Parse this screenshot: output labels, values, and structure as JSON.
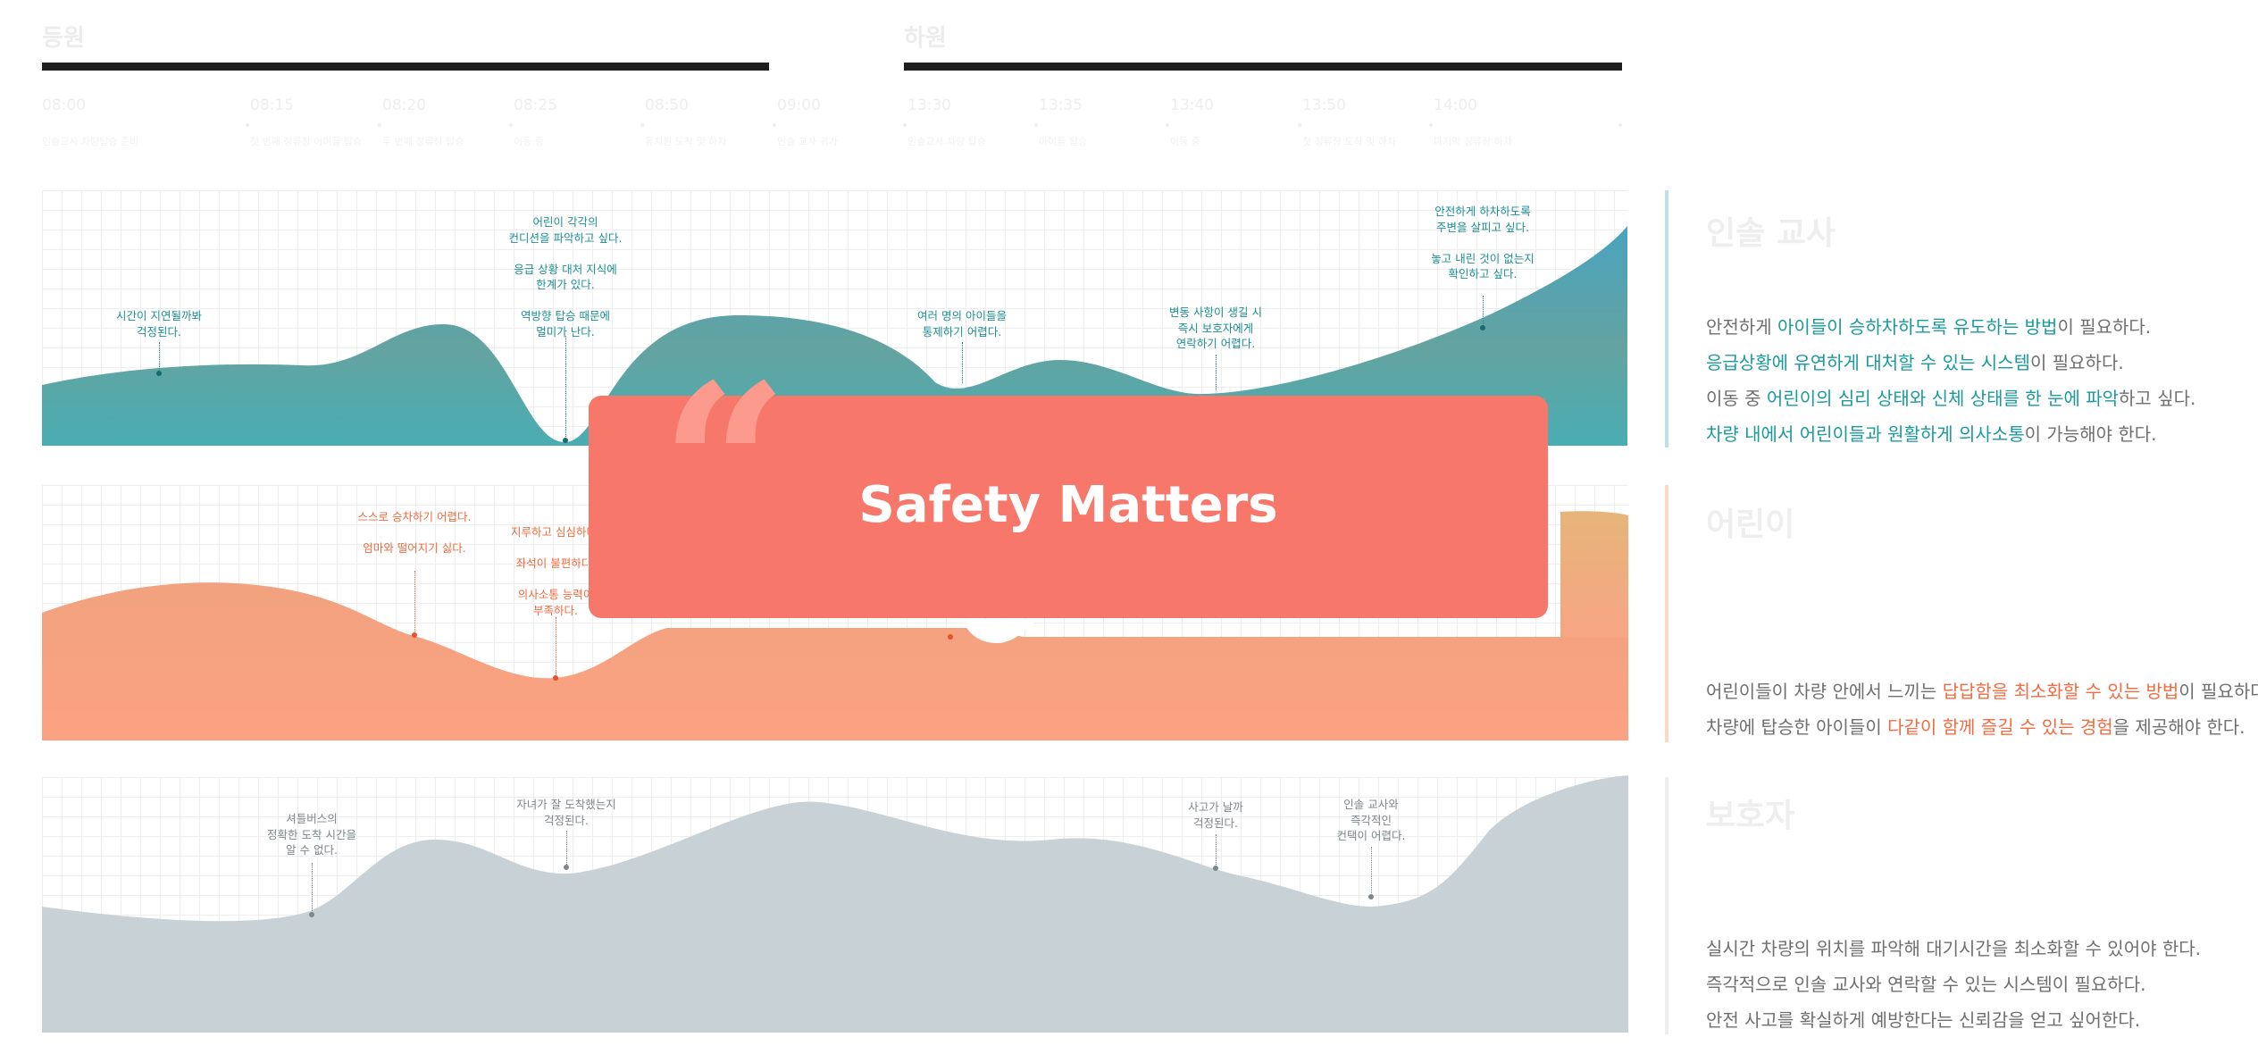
{
  "timeline": {
    "morning": {
      "title": "등원",
      "events": [
        {
          "time": "08:00",
          "desc": "인솔교사 차량탑승 준비"
        },
        {
          "time": "08:15",
          "desc": "첫 번째 정류장 아이들 탑승"
        },
        {
          "time": "08:20",
          "desc": "두 번째 정류장 탑승"
        },
        {
          "time": "08:25",
          "desc": "이동 중"
        },
        {
          "time": "08:50",
          "desc": "유치원 도착 및 하차"
        },
        {
          "time": "09:00",
          "desc": "인솔 교사 귀가"
        }
      ]
    },
    "afternoon": {
      "title": "하원",
      "events": [
        {
          "time": "13:30",
          "desc": "인솔교사 차량 탑승"
        },
        {
          "time": "13:35",
          "desc": "아이들 탑승"
        },
        {
          "time": "13:40",
          "desc": "이동 중"
        },
        {
          "time": "13:50",
          "desc": "첫 정류장 도착 및 하차"
        },
        {
          "time": "14:00",
          "desc": "마지막 정류장 하차"
        }
      ]
    }
  },
  "overlay": {
    "quote_glyph": "“",
    "title": "Safety Matters"
  },
  "personas": {
    "teacher": {
      "title": "인솔 교사",
      "needs": [
        {
          "parts": [
            {
              "t": "안전하게 ",
              "hl": false
            },
            {
              "t": "아이들이 승하차하도록 유도하는 방법",
              "hl": true
            },
            {
              "t": "이 필요하다.",
              "hl": false
            }
          ]
        },
        {
          "parts": [
            {
              "t": "응급상황에 유연하게 대처할 수 있는 시스템",
              "hl": true
            },
            {
              "t": "이 필요하다.",
              "hl": false
            }
          ]
        },
        {
          "parts": [
            {
              "t": "이동 중 ",
              "hl": false
            },
            {
              "t": "어린이의 심리 상태와 신체 상태를 한 눈에 파악",
              "hl": true
            },
            {
              "t": "하고 싶다.",
              "hl": false
            }
          ]
        },
        {
          "parts": [
            {
              "t": "차량 내에서 어린이들과 원활하게 의사소통",
              "hl": true
            },
            {
              "t": "이 가능해야 한다.",
              "hl": false
            }
          ]
        }
      ],
      "annotations": [
        "시간이 지연될까봐\n걱정된다.",
        "어린이 각각의\n컨디션을 파악하고 싶다.\n\n응급 상황 대처 지식에\n한계가 있다.\n\n역방향 탑승 때문에\n멀미가 난다.",
        "여러 명의 아이들을\n통제하기 어렵다.",
        "변동 사항이 생길 시\n즉시 보호자에게\n연락하기 어렵다.",
        "안전하게 하차하도록\n주변을 살피고 싶다.\n\n놓고 내린 것이 없는지\n확인하고 싶다."
      ]
    },
    "child": {
      "title": "어린이",
      "needs": [
        {
          "parts": [
            {
              "t": "어린이들이 차량 안에서 느끼는 ",
              "hl": false
            },
            {
              "t": "답답함을 최소화할 수 있는 방법",
              "hl": true
            },
            {
              "t": "이 필요하다.",
              "hl": false
            }
          ]
        },
        {
          "parts": [
            {
              "t": "차량에 탑승한 아이들이 ",
              "hl": false
            },
            {
              "t": "다같이 함께 즐길 수 있는 경험",
              "hl": true
            },
            {
              "t": "을 제공해야 한다.",
              "hl": false
            }
          ]
        }
      ],
      "annotations": [
        "스스로 승차하기 어렵다.\n\n엄마와 떨어지기 싫다.",
        "지루하고 심심하다.\n\n좌석이 불편하다.\n\n의사소통 능력이\n부족하다."
      ]
    },
    "guardian": {
      "title": "보호자",
      "needs": [
        {
          "parts": [
            {
              "t": "실시간 차량의 위치를 파악해 대기시간을 최소화할 수 있어야 한다.",
              "hl": false
            }
          ]
        },
        {
          "parts": [
            {
              "t": "즉각적으로 인솔 교사와 연락할 수 있는 시스템이 필요하다.",
              "hl": false
            }
          ]
        },
        {
          "parts": [
            {
              "t": "안전 사고를 확실하게 예방한다는 신뢰감을 얻고 싶어한다.",
              "hl": false
            }
          ]
        }
      ],
      "annotations": [
        "셔틀버스의\n정확한 도착 시간을\n알 수 없다.",
        "자녀가 잘 도착했는지\n걱정된다.",
        "사고가 날까\n걱정된다.",
        "인솔 교사와\n즉각적인\n컨택이 어렵다."
      ]
    }
  },
  "colors": {
    "teal_top": "#4aa3bf",
    "teal_mid": "#64a3a0",
    "teal_bottom": "#49adb2",
    "orange_top": "#e6b57a",
    "orange_bottom": "#fba282",
    "gray_fill": "#c8d1d5",
    "overlay": "#f7776a"
  }
}
